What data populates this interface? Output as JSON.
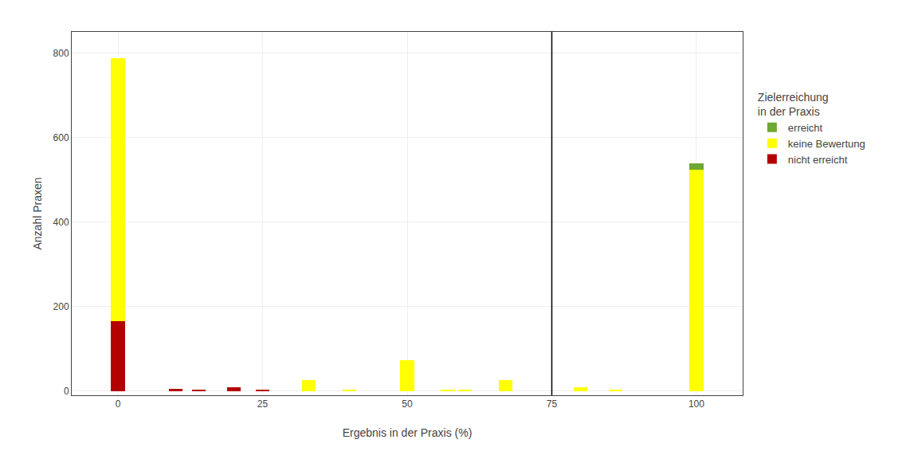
{
  "chart_data": {
    "type": "bar",
    "stacked": true,
    "xlabel": "Ergebnis in der Praxis (%)",
    "ylabel": "Anzahl Praxen",
    "legend_title": "Zielerreichung\nin der Praxis",
    "x": [
      0,
      10,
      14,
      20,
      25,
      33,
      40,
      50,
      57,
      60,
      67,
      80,
      86,
      100
    ],
    "series": [
      {
        "name": "nicht erreicht",
        "color": "#b30000",
        "values": [
          165,
          5,
          2,
          8,
          2,
          0,
          0,
          0,
          0,
          0,
          0,
          0,
          0,
          0
        ]
      },
      {
        "name": "keine Bewertung",
        "color": "#ffff00",
        "values": [
          622,
          0,
          0,
          0,
          0,
          25,
          2,
          73,
          2,
          2,
          25,
          8,
          2,
          523
        ]
      },
      {
        "name": "erreicht",
        "color": "#6fa832",
        "values": [
          0,
          0,
          0,
          0,
          0,
          0,
          0,
          0,
          0,
          0,
          0,
          0,
          0,
          15
        ]
      }
    ],
    "vlines": [
      75
    ],
    "xlim": [
      -8,
      108
    ],
    "xticks": [
      0,
      25,
      50,
      75,
      100
    ],
    "ylim": [
      -10,
      850
    ],
    "yticks": [
      0,
      200,
      400,
      600,
      800
    ],
    "grid": true
  }
}
